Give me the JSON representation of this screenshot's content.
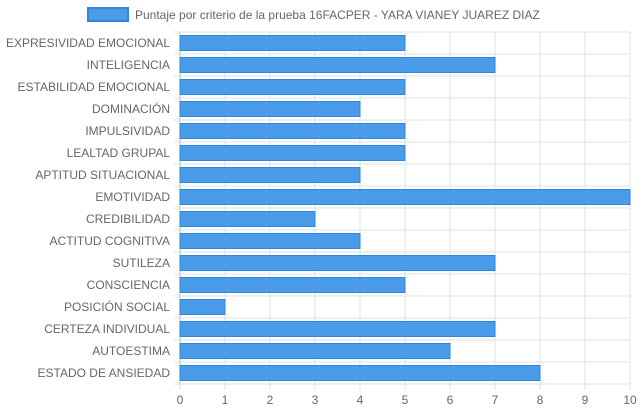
{
  "chart_data": {
    "type": "bar",
    "orientation": "horizontal",
    "categories": [
      "EXPRESIVIDAD EMOCIONAL",
      "INTELIGENCIA",
      "ESTABILIDAD EMOCIONAL",
      "DOMINACIÓN",
      "IMPULSIVIDAD",
      "LEALTAD GRUPAL",
      "APTITUD SITUACIONAL",
      "EMOTIVIDAD",
      "CREDIBILIDAD",
      "ACTITUD COGNITIVA",
      "SUTILEZA",
      "CONSCIENCIA",
      "POSICIÓN SOCIAL",
      "CERTEZA INDIVIDUAL",
      "AUTOESTIMA",
      "ESTADO DE ANSIEDAD"
    ],
    "series": [
      {
        "name": "Puntaje por criterio de la prueba 16FACPER - YARA VIANEY JUAREZ DIAZ",
        "values": [
          5,
          7,
          5,
          4,
          5,
          5,
          4,
          10,
          3,
          4,
          7,
          5,
          1,
          7,
          6,
          8
        ],
        "color": "#4a9be8",
        "border_color": "#2f86dd"
      }
    ],
    "xlim": [
      0,
      10
    ],
    "x_ticks": [
      "0",
      "1",
      "2",
      "3",
      "4",
      "5",
      "6",
      "7",
      "8",
      "9",
      "10"
    ],
    "grid": true,
    "legend_position": "top"
  }
}
